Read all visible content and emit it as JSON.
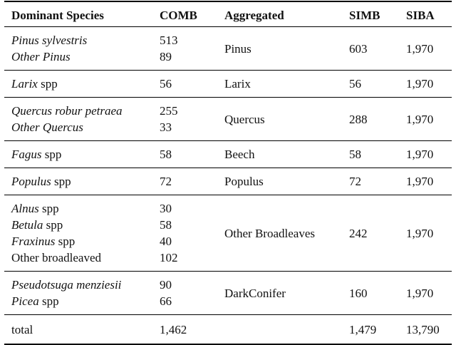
{
  "table": {
    "headers": [
      "Dominant Species",
      "COMB",
      "Aggregated",
      "SIMB",
      "SIBA"
    ],
    "groups": [
      {
        "species": [
          {
            "name": "Pinus sylvestris",
            "suffix": "",
            "italic": true,
            "comb": "513"
          },
          {
            "name": "Other Pinus",
            "suffix": "",
            "italic": true,
            "comb": "89"
          }
        ],
        "aggregated": "Pinus",
        "simb": "603",
        "siba": "1,970"
      },
      {
        "species": [
          {
            "name": "Larix",
            "suffix": " spp",
            "italic": true,
            "comb": "56"
          }
        ],
        "aggregated": "Larix",
        "simb": "56",
        "siba": "1,970"
      },
      {
        "species": [
          {
            "name": "Quercus robur petraea",
            "suffix": "",
            "italic": true,
            "comb": "255"
          },
          {
            "name": "Other Quercus",
            "suffix": "",
            "italic": true,
            "comb": "33"
          }
        ],
        "aggregated": "Quercus",
        "simb": "288",
        "siba": "1,970"
      },
      {
        "species": [
          {
            "name": "Fagus",
            "suffix": " spp",
            "italic": true,
            "comb": "58"
          }
        ],
        "aggregated": "Beech",
        "simb": "58",
        "siba": "1,970"
      },
      {
        "species": [
          {
            "name": "Populus",
            "suffix": " spp",
            "italic": true,
            "comb": "72"
          }
        ],
        "aggregated": "Populus",
        "simb": "72",
        "siba": "1,970"
      },
      {
        "species": [
          {
            "name": "Alnus",
            "suffix": " spp",
            "italic": true,
            "comb": "30"
          },
          {
            "name": "Betula",
            "suffix": " spp",
            "italic": true,
            "comb": "58"
          },
          {
            "name": "Fraxinus",
            "suffix": " spp",
            "italic": true,
            "comb": "40"
          },
          {
            "name": "Other broadleaved",
            "suffix": "",
            "italic": false,
            "comb": "102"
          }
        ],
        "aggregated": "Other Broadleaves",
        "simb": "242",
        "siba": "1,970"
      },
      {
        "species": [
          {
            "name": "Pseudotsuga menziesii",
            "suffix": "",
            "italic": true,
            "comb": "90"
          },
          {
            "name": "Picea",
            "suffix": " spp",
            "italic": true,
            "comb": "66"
          }
        ],
        "aggregated": "DarkConifer",
        "simb": "160",
        "siba": "1,970"
      }
    ],
    "total": {
      "label": "total",
      "comb": "1,462",
      "aggregated": "",
      "simb": "1,479",
      "siba": "13,790"
    }
  }
}
